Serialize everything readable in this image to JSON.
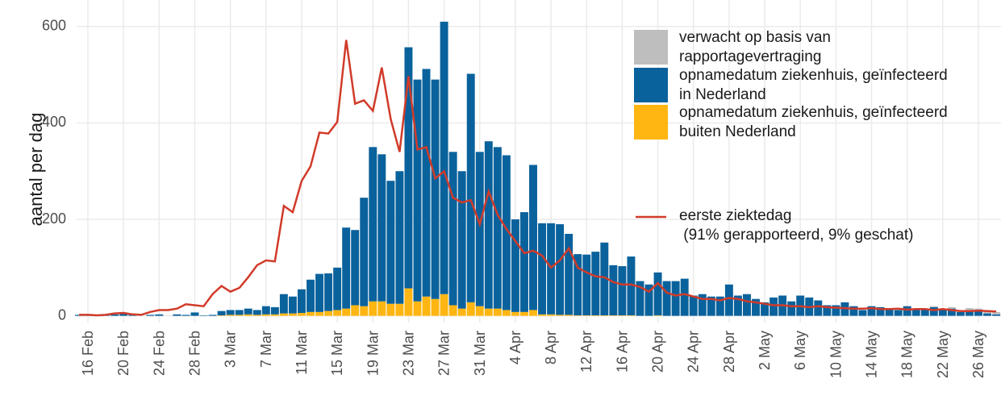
{
  "chart_data": {
    "type": "bar",
    "y_label": "aantal per dag",
    "categories": [
      null,
      "16 Feb",
      null,
      null,
      null,
      "20 Feb",
      null,
      null,
      null,
      "24 Feb",
      null,
      null,
      null,
      "28 Feb",
      null,
      null,
      null,
      "3 Mar",
      null,
      null,
      null,
      "7 Mar",
      null,
      null,
      null,
      "11 Mar",
      null,
      null,
      null,
      "15 Mar",
      null,
      null,
      null,
      "19 Mar",
      null,
      null,
      null,
      "23 Mar",
      null,
      null,
      null,
      "27 Mar",
      null,
      null,
      null,
      "31 Mar",
      null,
      null,
      null,
      "4 Apr",
      null,
      null,
      null,
      "8 Apr",
      null,
      null,
      null,
      "12 Apr",
      null,
      null,
      null,
      "16 Apr",
      null,
      null,
      null,
      "20 Apr",
      null,
      null,
      null,
      "24 Apr",
      null,
      null,
      null,
      "28 Apr",
      null,
      null,
      null,
      "2 May",
      null,
      null,
      null,
      "6 May",
      null,
      null,
      null,
      "10 May",
      null,
      null,
      null,
      "14 May",
      null,
      null,
      null,
      "18 May",
      null,
      null,
      null,
      "22 May",
      null,
      null,
      null,
      "26 May",
      null,
      null
    ],
    "series": [
      {
        "name": "verwacht op basis van\nrapportagevertraging",
        "color": "#bebebe",
        "stack_order": 2,
        "values": [
          0,
          0,
          0,
          0,
          0,
          0,
          0,
          0,
          0,
          0,
          0,
          0,
          0,
          0,
          0,
          0,
          0,
          0,
          0,
          0,
          0,
          0,
          0,
          0,
          0,
          0,
          0,
          0,
          0,
          0,
          0,
          0,
          0,
          0,
          0,
          0,
          0,
          0,
          0,
          0,
          0,
          0,
          0,
          0,
          0,
          0,
          0,
          0,
          0,
          0,
          0,
          0,
          0,
          0,
          0,
          0,
          0,
          0,
          0,
          0,
          0,
          0,
          0,
          0,
          0,
          0,
          0,
          0,
          0,
          0,
          0,
          0,
          0,
          0,
          0,
          0,
          0,
          0,
          0,
          0,
          0,
          0,
          0,
          0,
          0,
          0,
          0,
          0,
          0,
          0,
          0,
          0,
          0,
          0,
          0,
          0,
          2,
          2,
          3,
          3,
          4,
          5,
          6,
          5
        ]
      },
      {
        "name": "opnamedatum ziekenhuis, geïnfecteerd\nin Nederland",
        "color": "#0a629c",
        "stack_order": 1,
        "values": [
          2,
          1,
          0,
          1,
          3,
          4,
          2,
          0,
          2,
          3,
          0,
          3,
          2,
          7,
          1,
          2,
          9,
          10,
          10,
          12,
          10,
          17,
          15,
          40,
          35,
          49,
          67,
          79,
          78,
          88,
          168,
          156,
          225,
          320,
          305,
          255,
          275,
          500,
          460,
          472,
          455,
          565,
          318,
          285,
          474,
          320,
          347,
          335,
          321,
          192,
          207,
          301,
          189,
          189,
          188,
          168,
          127,
          126,
          132,
          151,
          104,
          102,
          122,
          72,
          65,
          89,
          72,
          72,
          77,
          42,
          45,
          40,
          40,
          65,
          42,
          45,
          35,
          28,
          38,
          42,
          30,
          42,
          38,
          32,
          22,
          22,
          28,
          20,
          12,
          20,
          18,
          15,
          12,
          20,
          12,
          15,
          18,
          12,
          15,
          8,
          12,
          10,
          5,
          3
        ]
      },
      {
        "name": "opnamedatum ziekenhuis, geïnfecteerd\nbuiten Nederland",
        "color": "#ffb612",
        "stack_order": 0,
        "values": [
          0,
          0,
          0,
          0,
          0,
          0,
          0,
          0,
          0,
          0,
          0,
          0,
          0,
          0,
          0,
          0,
          1,
          2,
          2,
          3,
          2,
          3,
          3,
          5,
          5,
          6,
          8,
          8,
          10,
          12,
          15,
          22,
          20,
          30,
          30,
          25,
          25,
          57,
          30,
          40,
          35,
          45,
          22,
          15,
          28,
          20,
          15,
          15,
          12,
          8,
          8,
          12,
          3,
          3,
          2,
          2,
          1,
          1,
          1,
          1,
          1,
          1,
          1,
          0,
          0,
          1,
          0,
          0,
          0,
          0,
          0,
          0,
          0,
          0,
          0,
          0,
          0,
          0,
          0,
          0,
          0,
          0,
          0,
          0,
          0,
          0,
          0,
          0,
          0,
          0,
          0,
          0,
          0,
          0,
          0,
          0,
          0,
          0,
          0,
          0,
          0,
          0,
          0,
          0
        ]
      },
      {
        "name": "eerste ziektedag\n (91% gerapporteerd, 9% geschat)",
        "color": "#d13b2a",
        "type": "line",
        "values": [
          2,
          2,
          1,
          2,
          5,
          6,
          3,
          2,
          8,
          12,
          12,
          15,
          24,
          22,
          20,
          45,
          62,
          50,
          58,
          80,
          105,
          115,
          113,
          228,
          215,
          280,
          310,
          380,
          378,
          402,
          572,
          440,
          447,
          425,
          515,
          408,
          340,
          497,
          345,
          350,
          285,
          300,
          245,
          235,
          240,
          190,
          258,
          210,
          180,
          155,
          130,
          135,
          125,
          100,
          115,
          140,
          100,
          90,
          82,
          80,
          70,
          65,
          65,
          60,
          50,
          68,
          48,
          42,
          45,
          40,
          35,
          35,
          32,
          37,
          35,
          30,
          28,
          25,
          22,
          22,
          20,
          20,
          18,
          20,
          18,
          17,
          16,
          15,
          15,
          16,
          14,
          14,
          15,
          13,
          14,
          14,
          12,
          14,
          12,
          10,
          10,
          11,
          10,
          9
        ]
      }
    ],
    "ylim": [
      -14,
      655
    ],
    "yticks": [
      0,
      200,
      400,
      600
    ],
    "grid": true
  }
}
